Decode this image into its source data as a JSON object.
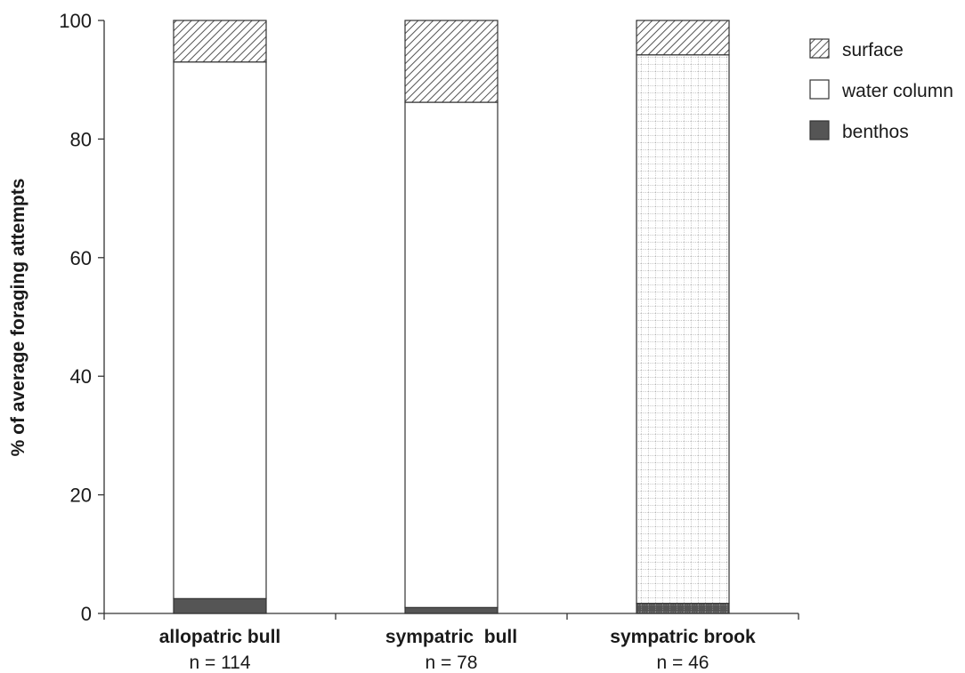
{
  "chart_data": {
    "type": "bar",
    "stacked": true,
    "ylabel": "% of average foraging attempts",
    "ylim": [
      0,
      100
    ],
    "yticks": [
      0,
      20,
      40,
      60,
      80,
      100
    ],
    "grid": false,
    "legend_position": "top-right",
    "categories": [
      "allopatric bull",
      "sympatric  bull",
      "sympatric brook"
    ],
    "sample_sizes": [
      "n = 114",
      "n = 78",
      "n = 46"
    ],
    "series": [
      {
        "name": "benthos",
        "values": [
          2.5,
          1.0,
          1.7
        ],
        "fill": "#555555",
        "pattern": "solid"
      },
      {
        "name": "water column",
        "values": [
          90.5,
          85.2,
          92.5
        ],
        "fill": "#ffffff",
        "pattern": "none"
      },
      {
        "name": "surface",
        "values": [
          7.0,
          13.8,
          5.8
        ],
        "fill": "#ffffff",
        "pattern": "diagonal"
      }
    ],
    "legend_order": [
      "surface",
      "water column",
      "benthos"
    ]
  }
}
